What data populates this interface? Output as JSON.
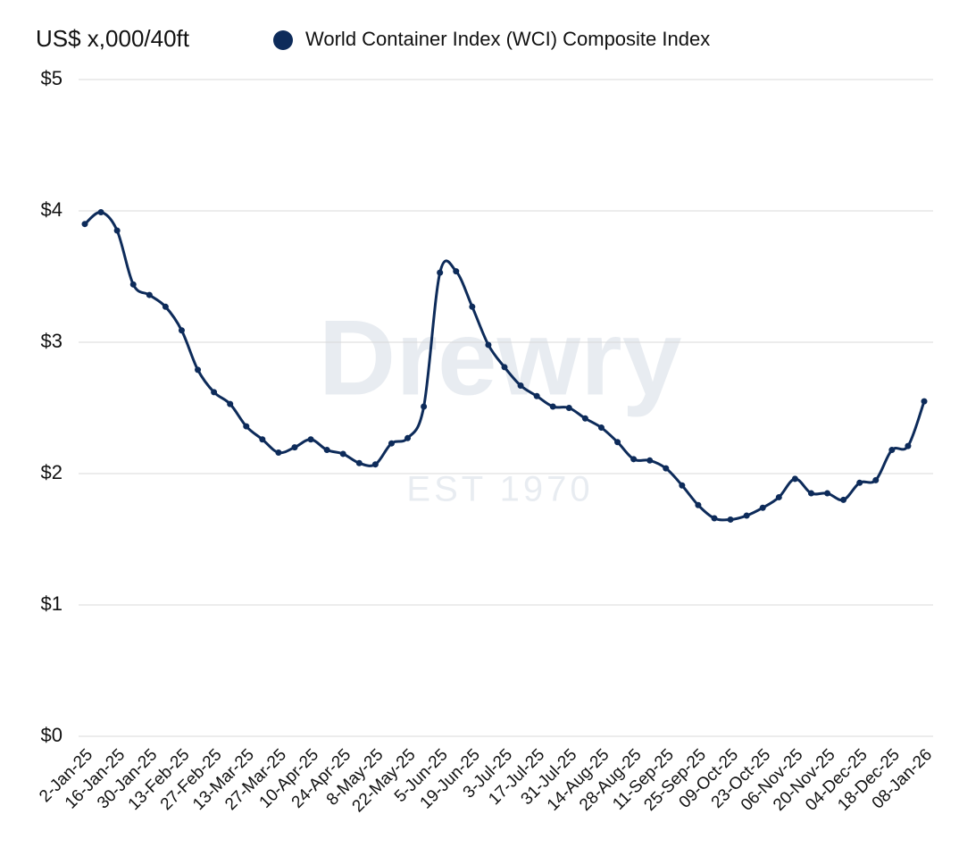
{
  "chart_data": {
    "type": "line",
    "y_axis_label": "US$ x,000/40ft",
    "watermark": "Drewry",
    "watermark_subtitle": "EST 1970",
    "legend": "top",
    "grid": true,
    "categories": [
      "2-Jan-25",
      null,
      "16-Jan-25",
      null,
      "30-Jan-25",
      null,
      "13-Feb-25",
      null,
      "27-Feb-25",
      null,
      "13-Mar-25",
      null,
      "27-Mar-25",
      null,
      "10-Apr-25",
      null,
      "24-Apr-25",
      null,
      "8-May-25",
      null,
      "22-May-25",
      null,
      "5-Jun-25",
      null,
      "19-Jun-25",
      null,
      "3-Jul-25",
      null,
      "17-Jul-25",
      null,
      "31-Jul-25",
      null,
      "14-Aug-25",
      null,
      "28-Aug-25",
      null,
      "11-Sep-25",
      null,
      "25-Sep-25",
      null,
      "09-Oct-25",
      null,
      "23-Oct-25",
      null,
      "06-Nov-25",
      null,
      "20-Nov-25",
      null,
      "04-Dec-25",
      null,
      "18-Dec-25",
      null,
      "08-Jan-26"
    ],
    "series": [
      {
        "name": "World Container Index (WCI) Composite Index",
        "color": "#0d2b5a",
        "values": [
          3.9,
          3.99,
          3.85,
          3.44,
          3.36,
          3.27,
          3.09,
          2.79,
          2.62,
          2.53,
          2.36,
          2.26,
          2.16,
          2.2,
          2.26,
          2.18,
          2.15,
          2.08,
          2.07,
          2.23,
          2.27,
          2.51,
          3.53,
          3.54,
          3.27,
          2.98,
          2.81,
          2.67,
          2.59,
          2.51,
          2.5,
          2.42,
          2.35,
          2.24,
          2.11,
          2.1,
          2.04,
          1.91,
          1.76,
          1.66,
          1.65,
          1.68,
          1.74,
          1.82,
          1.96,
          1.85,
          1.85,
          1.8,
          1.93,
          1.95,
          2.18,
          2.21,
          2.55
        ]
      }
    ],
    "ylim": [
      0,
      5
    ],
    "yticks": [
      {
        "value": 0,
        "label": "$0"
      },
      {
        "value": 1,
        "label": "$1"
      },
      {
        "value": 2,
        "label": "$2"
      },
      {
        "value": 3,
        "label": "$3"
      },
      {
        "value": 4,
        "label": "$4"
      },
      {
        "value": 5,
        "label": "$5"
      }
    ]
  }
}
